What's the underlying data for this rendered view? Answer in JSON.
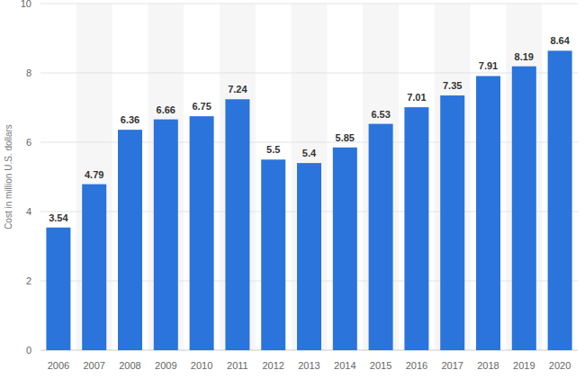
{
  "chart_data": {
    "type": "bar",
    "y_label": "Cost in million U.S. dollars",
    "categories": [
      "2006",
      "2007",
      "2008",
      "2009",
      "2010",
      "2011",
      "2012",
      "2013",
      "2014",
      "2015",
      "2016",
      "2017",
      "2018",
      "2019",
      "2020"
    ],
    "values": [
      3.54,
      4.79,
      6.36,
      6.66,
      6.75,
      7.24,
      5.5,
      5.4,
      5.85,
      6.53,
      7.01,
      7.35,
      7.91,
      8.19,
      8.64
    ],
    "color": "#2a74db",
    "ylim": [
      0,
      10
    ],
    "yticks": [
      0,
      2,
      4,
      6,
      8,
      10
    ],
    "grid": true,
    "data_labels": true
  }
}
